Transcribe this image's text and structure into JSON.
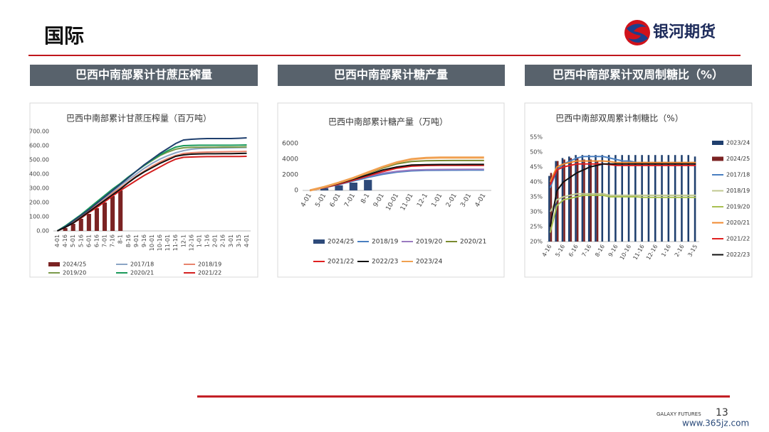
{
  "header": {
    "title": "国际",
    "logo": "银河期货"
  },
  "panels": [
    {
      "heading": "巴西中南部累计甘蔗压榨量"
    },
    {
      "heading": "巴西中南部累计糖产量"
    },
    {
      "heading": "巴西中南部累计双周制糖比（%）"
    }
  ],
  "chart_data": [
    {
      "type": "line",
      "title": "巴西中南部累计甘蔗压榨量（百万吨）",
      "categories": [
        "4-01",
        "4-16",
        "5-01",
        "5-16",
        "6-01",
        "6-16",
        "7-01",
        "7-16",
        "8-1",
        "8-16",
        "9-01",
        "9-16",
        "10-01",
        "10-16",
        "11-01",
        "11-16",
        "12-1",
        "12-16",
        "1-01",
        "1-16",
        "2-01",
        "2-16",
        "3-01",
        "3-15",
        "4-01"
      ],
      "ylim": [
        0,
        700
      ],
      "yticks": [
        {
          "value": 0,
          "label": "0.00"
        },
        {
          "value": 100,
          "label": "100.00"
        },
        {
          "value": 200,
          "label": "200.00"
        },
        {
          "value": 300,
          "label": "300.00"
        },
        {
          "value": 400,
          "label": "400.00"
        },
        {
          "value": 500,
          "label": "500.00"
        },
        {
          "value": 600,
          "label": "600.00"
        },
        {
          "value": 700,
          "label": "700.00"
        }
      ],
      "series": [
        {
          "name": "2024/25",
          "type": "bar",
          "color": "#7b2323",
          "values": [
            null,
            20,
            50,
            85,
            120,
            160,
            200,
            245,
            285,
            null,
            null,
            null,
            null,
            null,
            null,
            null,
            null,
            null,
            null,
            null,
            null,
            null,
            null,
            null,
            null
          ]
        },
        {
          "name": "2017/18",
          "type": "line",
          "color": "#8aa4c4",
          "values": [
            0,
            30,
            65,
            105,
            145,
            185,
            230,
            275,
            320,
            360,
            400,
            440,
            475,
            505,
            530,
            550,
            565,
            575,
            580,
            582,
            583,
            584,
            585,
            586,
            587
          ]
        },
        {
          "name": "2018/19",
          "type": "line",
          "color": "#e8836d",
          "values": [
            0,
            28,
            60,
            100,
            140,
            180,
            220,
            265,
            305,
            345,
            385,
            420,
            455,
            485,
            510,
            530,
            545,
            550,
            553,
            555,
            556,
            557,
            558,
            558,
            560
          ]
        },
        {
          "name": "2019/20",
          "type": "line",
          "color": "#7a9a4a",
          "values": [
            0,
            30,
            70,
            110,
            150,
            195,
            240,
            285,
            330,
            375,
            420,
            460,
            495,
            530,
            555,
            575,
            585,
            588,
            588,
            589,
            589,
            590,
            590,
            590,
            592
          ]
        },
        {
          "name": "2020/21",
          "type": "line",
          "color": "#1a9a5a",
          "values": [
            0,
            35,
            75,
            115,
            160,
            205,
            250,
            295,
            335,
            380,
            420,
            460,
            500,
            535,
            565,
            590,
            600,
            602,
            603,
            603,
            603,
            603,
            603,
            604,
            605
          ]
        },
        {
          "name": "2021/22",
          "type": "line",
          "color": "#d42020",
          "values": [
            0,
            25,
            55,
            90,
            130,
            165,
            205,
            245,
            285,
            320,
            355,
            390,
            420,
            450,
            480,
            505,
            518,
            520,
            522,
            523,
            523,
            524,
            524,
            524,
            525
          ]
        },
        {
          "type": "line",
          "color": "#1f3f6e",
          "values": [
            0,
            30,
            70,
            110,
            150,
            195,
            240,
            285,
            330,
            375,
            420,
            465,
            505,
            545,
            580,
            615,
            640,
            645,
            648,
            650,
            650,
            650,
            650,
            652,
            655
          ]
        },
        {
          "type": "line",
          "color": "#111111",
          "values": [
            0,
            25,
            55,
            95,
            135,
            175,
            215,
            255,
            295,
            340,
            380,
            415,
            445,
            475,
            500,
            525,
            535,
            540,
            542,
            543,
            543,
            544,
            544,
            545,
            546
          ]
        }
      ]
    },
    {
      "type": "line",
      "title": "巴西中南部累计糖产量（万吨）",
      "categories": [
        "4-01",
        "5-01",
        "6-01",
        "7-01",
        "8-1",
        "9-01",
        "10-01",
        "11-01",
        "12-1",
        "1-01",
        "2-01",
        "3-01",
        "4-01"
      ],
      "ylim": [
        0,
        6000
      ],
      "yticks": [
        0,
        2000,
        4000,
        6000
      ],
      "series": [
        {
          "name": "2024/25",
          "type": "bar",
          "color": "#2e4a7a",
          "values": [
            null,
            300,
            650,
            1000,
            1350,
            null,
            null,
            null,
            null,
            null,
            null,
            null,
            null
          ]
        },
        {
          "name": "2018/19",
          "type": "line",
          "color": "#4a7fc0",
          "values": [
            0,
            350,
            750,
            1200,
            1650,
            2050,
            2350,
            2500,
            2560,
            2580,
            2590,
            2600,
            2600
          ]
        },
        {
          "name": "2019/20",
          "type": "line",
          "color": "#9a7ac0",
          "values": [
            0,
            400,
            850,
            1350,
            1800,
            2200,
            2450,
            2600,
            2650,
            2680,
            2690,
            2700,
            2700
          ]
        },
        {
          "name": "2020/21",
          "type": "line",
          "color": "#7a8a30",
          "values": [
            0,
            450,
            950,
            1550,
            2200,
            2850,
            3400,
            3700,
            3800,
            3820,
            3830,
            3830,
            3830
          ]
        },
        {
          "name": "2021/22",
          "type": "line",
          "color": "#e02020",
          "values": [
            0,
            350,
            800,
            1300,
            1850,
            2400,
            2850,
            3100,
            3180,
            3200,
            3200,
            3210,
            3210
          ]
        },
        {
          "name": "2022/23",
          "type": "line",
          "color": "#111111",
          "values": [
            0,
            400,
            900,
            1450,
            2000,
            2600,
            3000,
            3250,
            3300,
            3320,
            3320,
            3330,
            3330
          ]
        },
        {
          "name": "2023/24",
          "type": "line",
          "color": "#f0a050",
          "values": [
            0,
            450,
            1000,
            1600,
            2300,
            3000,
            3600,
            4000,
            4150,
            4200,
            4200,
            4200,
            4200
          ]
        }
      ]
    },
    {
      "type": "line",
      "title": "巴西中南部双周累计制糖比（%）",
      "categories": [
        "4-16",
        null,
        "5-16",
        null,
        "6-16",
        null,
        "7-16",
        null,
        "8-16",
        null,
        "9-16",
        null,
        "10-16",
        null,
        "11-16",
        null,
        "12-16",
        null,
        "1-16",
        null,
        "2-16",
        null,
        "3-15"
      ],
      "ylim": [
        20,
        55
      ],
      "yticks": [
        {
          "value": 20,
          "label": "20%"
        },
        {
          "value": 25,
          "label": "25%"
        },
        {
          "value": 30,
          "label": "30%"
        },
        {
          "value": 35,
          "label": "35%"
        },
        {
          "value": 40,
          "label": "40%"
        },
        {
          "value": 45,
          "label": "45%"
        },
        {
          "value": 50,
          "label": "50%"
        },
        {
          "value": 55,
          "label": "55%"
        }
      ],
      "series": [
        {
          "name": "2023/24",
          "type": "bar",
          "color": "#1f3f6e",
          "values": [
            42,
            47,
            48,
            48.5,
            49,
            49,
            49,
            49,
            49,
            49,
            49,
            49,
            49,
            49,
            49,
            49,
            49,
            49,
            49,
            49,
            49,
            49,
            48.5
          ]
        },
        {
          "name": "2024/25",
          "type": "bar",
          "color": "#7b2323",
          "values": [
            43,
            47,
            47.5,
            48,
            48,
            47.5,
            47.5,
            47,
            null,
            null,
            null,
            null,
            null,
            null,
            null,
            null,
            null,
            null,
            null,
            null,
            null,
            null,
            null
          ]
        },
        {
          "name": "2017/18",
          "type": "line",
          "color": "#4a7fc0",
          "values": [
            38,
            44,
            46,
            47,
            48,
            48.5,
            48.5,
            48.5,
            48.5,
            48,
            47.5,
            47,
            47,
            46.5,
            46.5,
            46.5,
            46.5,
            46.5,
            46.5,
            46.5,
            46.5,
            46.5,
            46.5
          ]
        },
        {
          "name": "2018/19",
          "type": "line",
          "color": "#c0c890",
          "values": [
            30,
            34,
            35,
            35.5,
            36,
            36,
            36,
            36,
            36,
            35.5,
            35.5,
            35.5,
            35.5,
            35.5,
            35.5,
            35.5,
            35.5,
            35.5,
            35.5,
            35.5,
            35.5,
            35.5,
            35.5
          ]
        },
        {
          "name": "2019/20",
          "type": "line",
          "color": "#a8c050",
          "values": [
            23,
            32,
            34,
            34.5,
            35,
            35.5,
            35.5,
            35.5,
            35.5,
            35,
            35,
            35,
            35,
            35,
            34.8,
            34.8,
            34.8,
            34.8,
            34.8,
            34.8,
            34.8,
            34.8,
            34.8
          ]
        },
        {
          "name": "2020/21",
          "type": "line",
          "color": "#f08a30",
          "values": [
            40,
            45,
            46,
            46.5,
            47,
            47,
            47,
            47,
            47,
            46.8,
            46.5,
            46.5,
            46.5,
            46.5,
            46.5,
            46.5,
            46.5,
            46.5,
            46.5,
            46.5,
            46.5,
            46.5,
            46.5
          ]
        },
        {
          "name": "2021/22",
          "type": "line",
          "color": "#e02020",
          "values": [
            39,
            44,
            45,
            45.5,
            46,
            46,
            46,
            46,
            46,
            45.8,
            45.5,
            45.5,
            45.5,
            45.5,
            45.5,
            45.5,
            45.5,
            45.5,
            45.5,
            45.5,
            45.5,
            45.5,
            45.5
          ]
        },
        {
          "name": "2022/23",
          "type": "line",
          "color": "#111111",
          "values": [
            25,
            37,
            40,
            41.5,
            43,
            44,
            45,
            45.5,
            46,
            46,
            46,
            46,
            46,
            46,
            46,
            46,
            46,
            46,
            46,
            46,
            46,
            46,
            46
          ]
        }
      ]
    }
  ],
  "footer": {
    "brand": "GALAXY FUTURES",
    "page": "13",
    "watermark": "www.365jz.com"
  }
}
